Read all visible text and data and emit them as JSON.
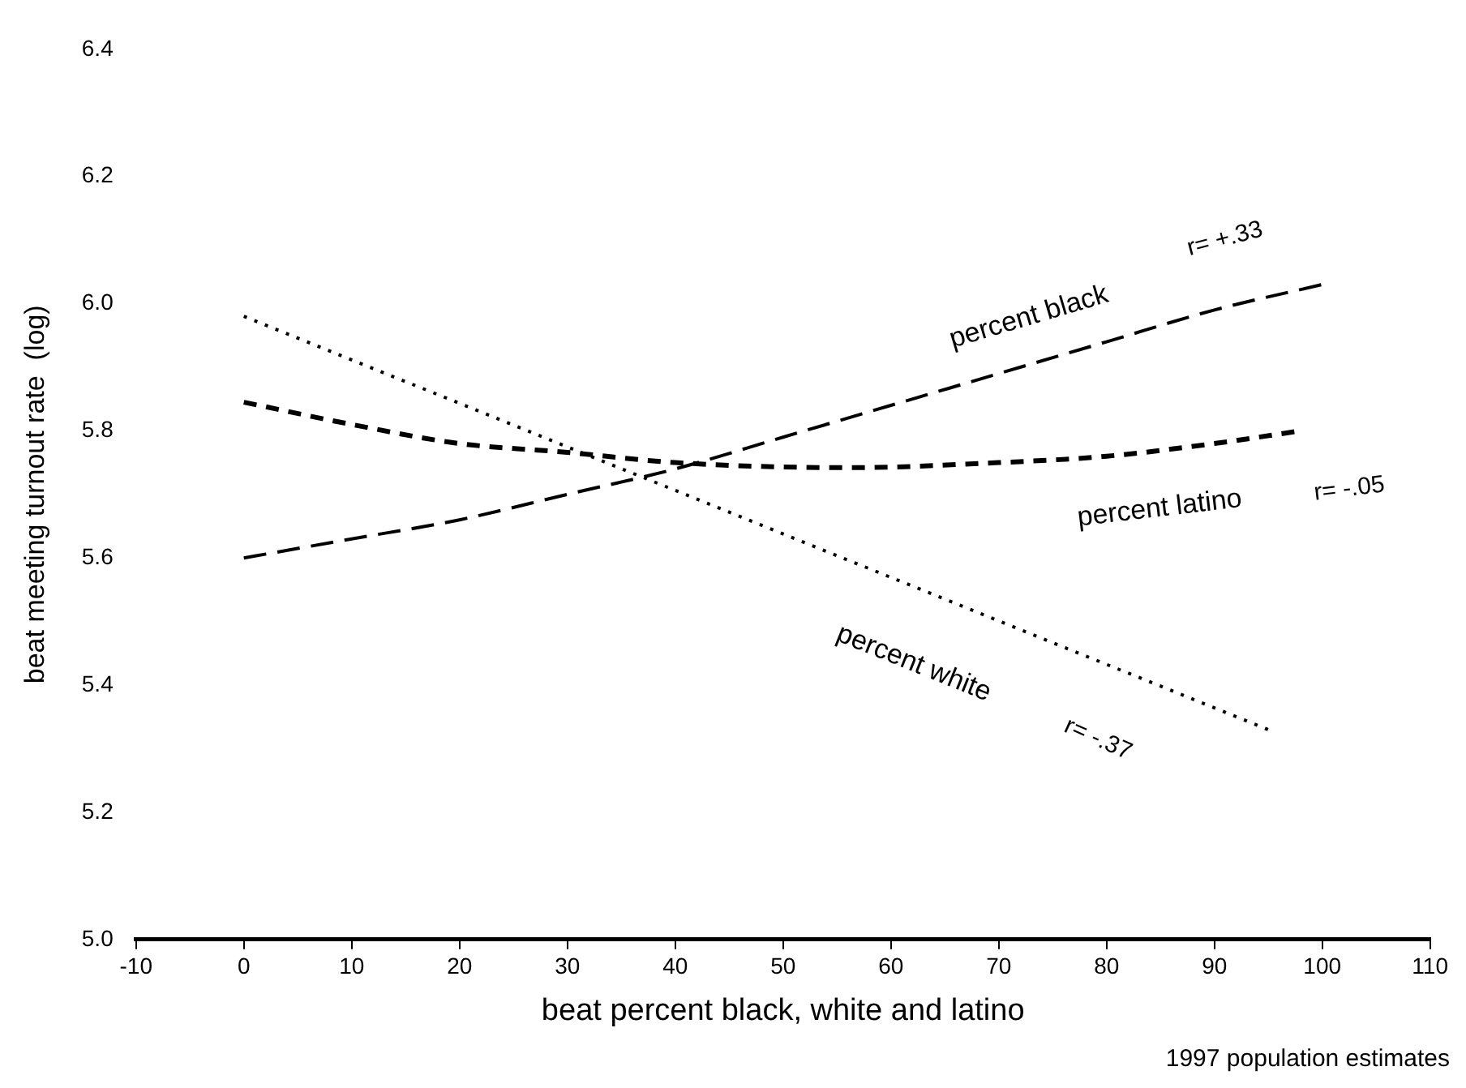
{
  "chart_data": {
    "type": "line",
    "xlabel": "beat percent black, white and latino",
    "ylabel": "beat meeting turnout rate  (log)",
    "xlim": [
      -10,
      110
    ],
    "xticks": [
      -10,
      0,
      10,
      20,
      30,
      40,
      50,
      60,
      70,
      80,
      90,
      100,
      110
    ],
    "ylim": [
      5.0,
      6.4
    ],
    "yticks": [
      {
        "value": 5,
        "label": "5.0"
      },
      5.2,
      5.4,
      5.6,
      5.8,
      {
        "value": 6,
        "label": "6.0"
      },
      6.2,
      6.4
    ],
    "grid": false,
    "legend": false,
    "marker": "none",
    "series": [
      {
        "name": "percent black",
        "color": "#000000",
        "line_style": "dashed",
        "x": [
          0,
          10,
          20,
          30,
          40,
          50,
          60,
          70,
          80,
          90,
          100
        ],
        "values": [
          5.6,
          5.63,
          5.66,
          5.7,
          5.74,
          5.79,
          5.84,
          5.89,
          5.94,
          5.99,
          6.03
        ]
      },
      {
        "name": "percent latino",
        "color": "#000000",
        "line_style": "dashed",
        "x": [
          0,
          10,
          20,
          30,
          40,
          56,
          70,
          80,
          90,
          98
        ],
        "values": [
          5.845,
          5.81,
          5.78,
          5.766,
          5.75,
          5.742,
          5.75,
          5.76,
          5.78,
          5.8
        ]
      },
      {
        "name": "percent white",
        "color": "#000000",
        "line_style": "dotted",
        "x": [
          0,
          95
        ],
        "values": [
          5.98,
          5.33
        ]
      }
    ],
    "annotations": [
      "r= +.33",
      "r= -.05",
      "r= -.37",
      "1997 population estimates"
    ]
  }
}
